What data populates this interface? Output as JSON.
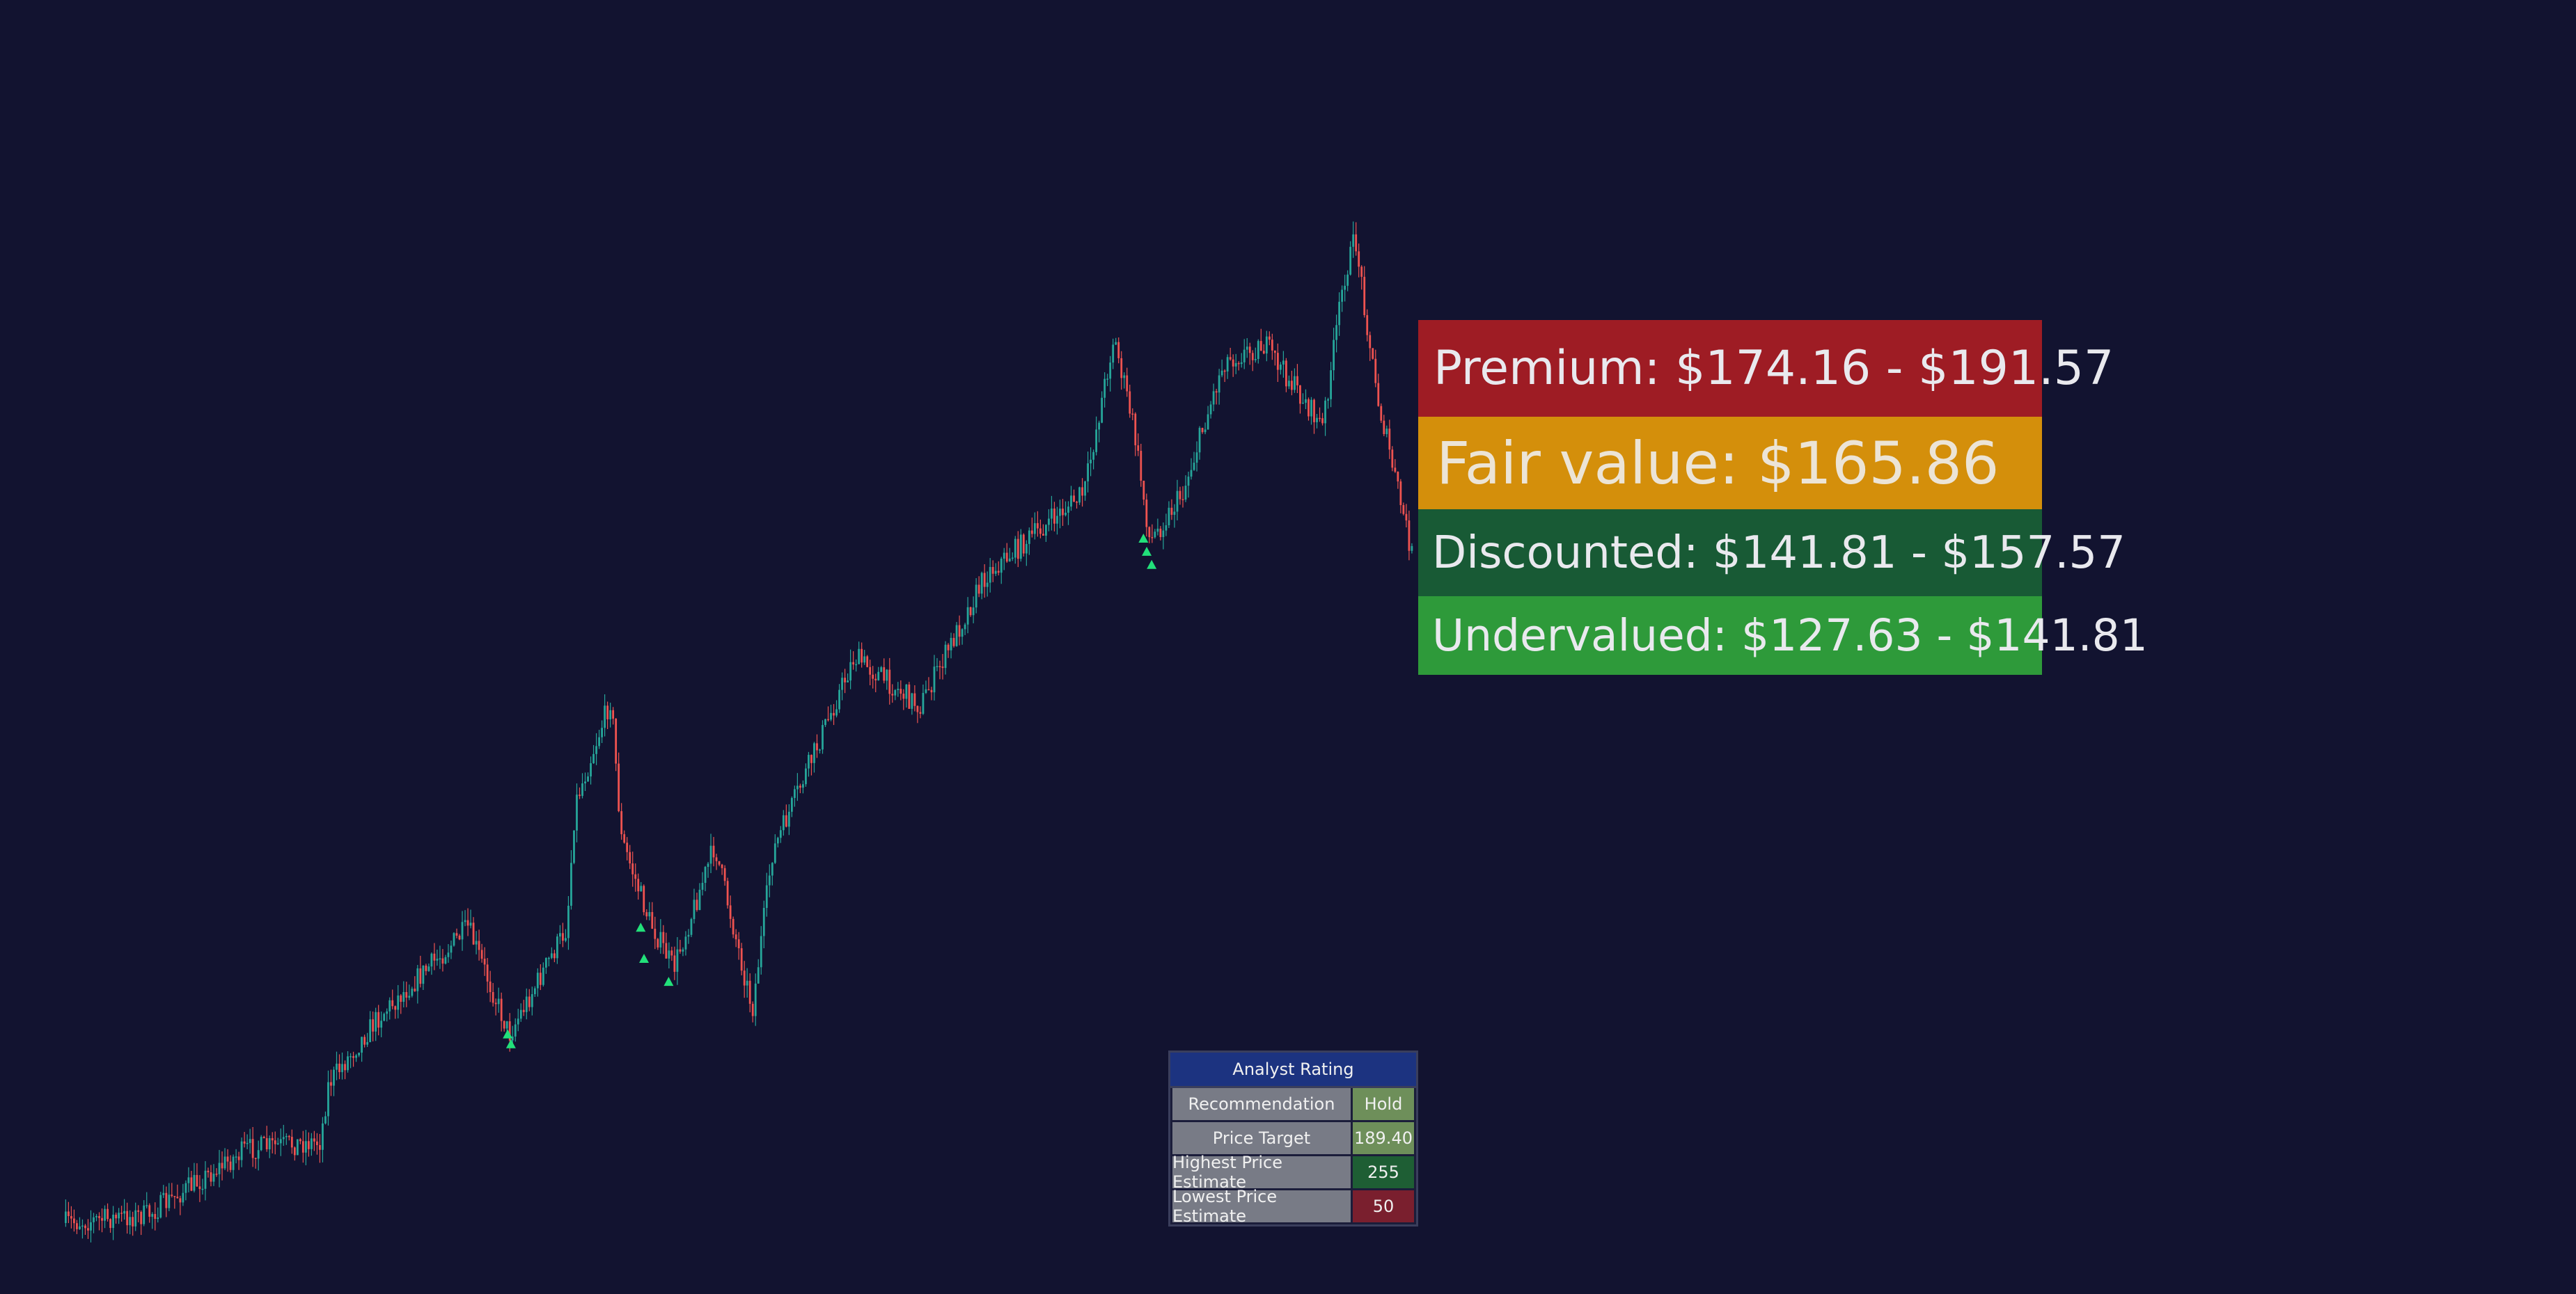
{
  "valuation_labels": {
    "premium": "Premium: $174.16 - $191.57",
    "fair_value": "Fair value: $165.86",
    "discounted": "Discounted: $141.81 - $157.57",
    "undervalued": "Undervalued: $127.63 - $141.81"
  },
  "analyst_table": {
    "title": "Analyst Rating",
    "rows": [
      [
        "Recommendation",
        "Hold"
      ],
      [
        "Price Target",
        "189.40"
      ],
      [
        "Highest Price Estimate",
        "255"
      ],
      [
        "Lowest Price Estimate",
        "50"
      ]
    ]
  }
}
